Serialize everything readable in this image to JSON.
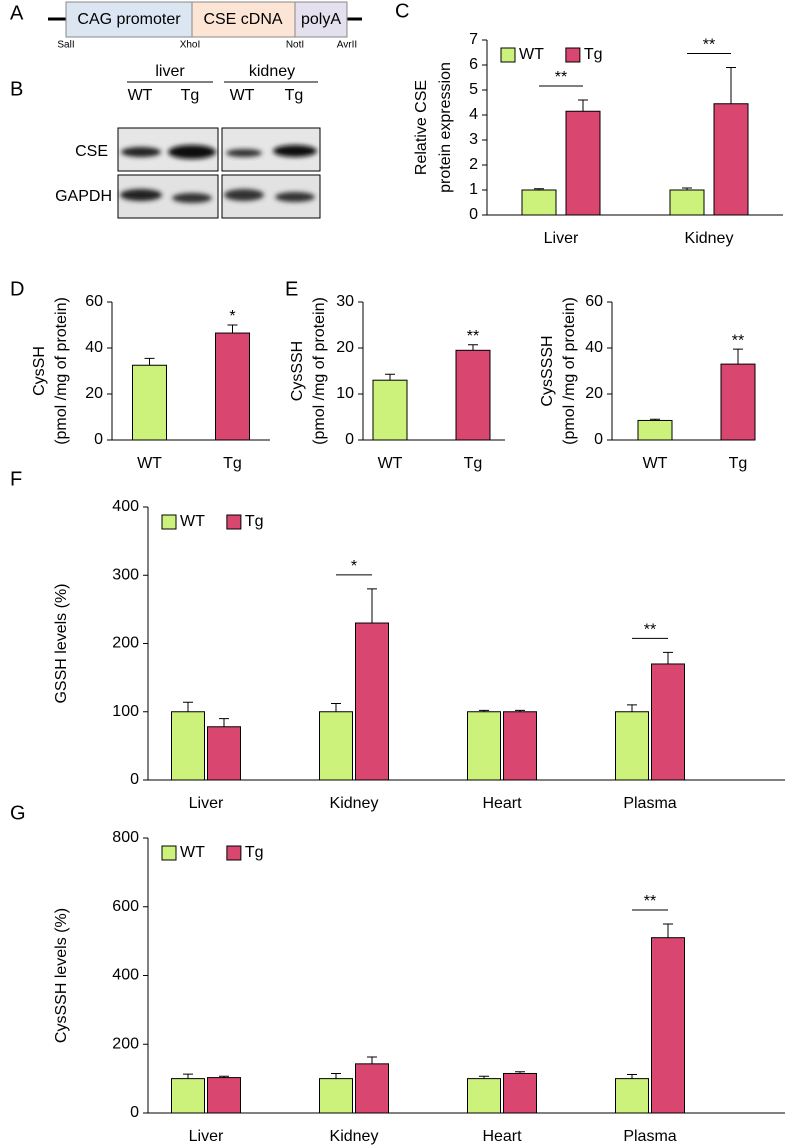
{
  "panel_a": {
    "label": "A",
    "segments": [
      "CAG promoter",
      "CSE cDNA",
      "polyA"
    ],
    "sites": [
      "SalI",
      "XhoI",
      "NotI",
      "AvrII"
    ]
  },
  "panel_b": {
    "label": "B",
    "tissues": [
      "liver",
      "kidney"
    ],
    "genotypes": [
      "WT",
      "Tg",
      "WT",
      "Tg"
    ],
    "proteins": [
      "CSE",
      "GAPDH"
    ]
  },
  "chart_data": [
    {
      "type": "bar",
      "panel": "C",
      "ylabel": [
        "Relative CSE",
        "protein expression"
      ],
      "categories": [
        "Liver",
        "Kidney"
      ],
      "series": [
        {
          "name": "WT",
          "color": "#ccf27b",
          "values": [
            1,
            1
          ],
          "errors": [
            0.05,
            0.08
          ]
        },
        {
          "name": "Tg",
          "color": "#d9466f",
          "values": [
            4.15,
            4.45
          ],
          "errors": [
            0.45,
            1.45
          ]
        }
      ],
      "significance": [
        "**",
        "**"
      ],
      "bracket": true,
      "legend": "top-left",
      "ylim": [
        0,
        7
      ],
      "yticks": [
        0,
        1,
        2,
        3,
        4,
        5,
        6,
        7
      ]
    },
    {
      "type": "bar",
      "panel": "D",
      "ylabel": [
        "CysSH",
        "(pmol /mg of protein)"
      ],
      "categories": [
        "WT",
        "Tg"
      ],
      "values": [
        32.5,
        46.5
      ],
      "errors": [
        3,
        3.5
      ],
      "colors": [
        "#ccf27b",
        "#d9466f"
      ],
      "significance": [
        null,
        "*"
      ],
      "ylim": [
        0,
        60
      ],
      "yticks": [
        0,
        20,
        40,
        60
      ]
    },
    {
      "type": "bar",
      "panel": "E",
      "ylabel": [
        "CysSSH",
        "(pmol /mg of protein)"
      ],
      "categories": [
        "WT",
        "Tg"
      ],
      "values": [
        13,
        19.5
      ],
      "errors": [
        1.3,
        1.2
      ],
      "colors": [
        "#ccf27b",
        "#d9466f"
      ],
      "significance": [
        null,
        "**"
      ],
      "ylim": [
        0,
        30
      ],
      "yticks": [
        0,
        10,
        20,
        30
      ]
    },
    {
      "type": "bar",
      "ylabel": [
        "CysSSSH",
        "(pmol /mg of protein)"
      ],
      "categories": [
        "WT",
        "Tg"
      ],
      "values": [
        8.5,
        33
      ],
      "errors": [
        0.5,
        6.5
      ],
      "colors": [
        "#ccf27b",
        "#d9466f"
      ],
      "significance": [
        null,
        "**"
      ],
      "ylim": [
        0,
        60
      ],
      "yticks": [
        0,
        20,
        40,
        60
      ]
    },
    {
      "type": "bar",
      "panel": "F",
      "ylabel": "GSSH levels (%)",
      "categories": [
        "Liver",
        "Kidney",
        "Heart",
        "Plasma"
      ],
      "series": [
        {
          "name": "WT",
          "color": "#ccf27b",
          "values": [
            100,
            100,
            100,
            100
          ],
          "errors": [
            14,
            12,
            2,
            10
          ]
        },
        {
          "name": "Tg",
          "color": "#d9466f",
          "values": [
            78,
            230,
            100,
            170
          ],
          "errors": [
            12,
            50,
            2,
            17
          ]
        }
      ],
      "significance": [
        null,
        "*",
        null,
        "**"
      ],
      "bracket": true,
      "legend": "top-left",
      "ylim": [
        0,
        400
      ],
      "yticks": [
        0,
        100,
        200,
        300,
        400
      ]
    },
    {
      "type": "bar",
      "panel": "G",
      "ylabel": "CysSSH levels (%)",
      "categories": [
        "Liver",
        "Kidney",
        "Heart",
        "Plasma"
      ],
      "series": [
        {
          "name": "WT",
          "color": "#ccf27b",
          "values": [
            100,
            100,
            100,
            100
          ],
          "errors": [
            13,
            15,
            7,
            12
          ]
        },
        {
          "name": "Tg",
          "color": "#d9466f",
          "values": [
            103,
            143,
            115,
            510
          ],
          "errors": [
            4,
            20,
            5,
            40
          ]
        }
      ],
      "significance": [
        null,
        null,
        null,
        "**"
      ],
      "bracket": true,
      "legend": "top-left",
      "ylim": [
        0,
        800
      ],
      "yticks": [
        0,
        200,
        400,
        600,
        800
      ]
    }
  ]
}
